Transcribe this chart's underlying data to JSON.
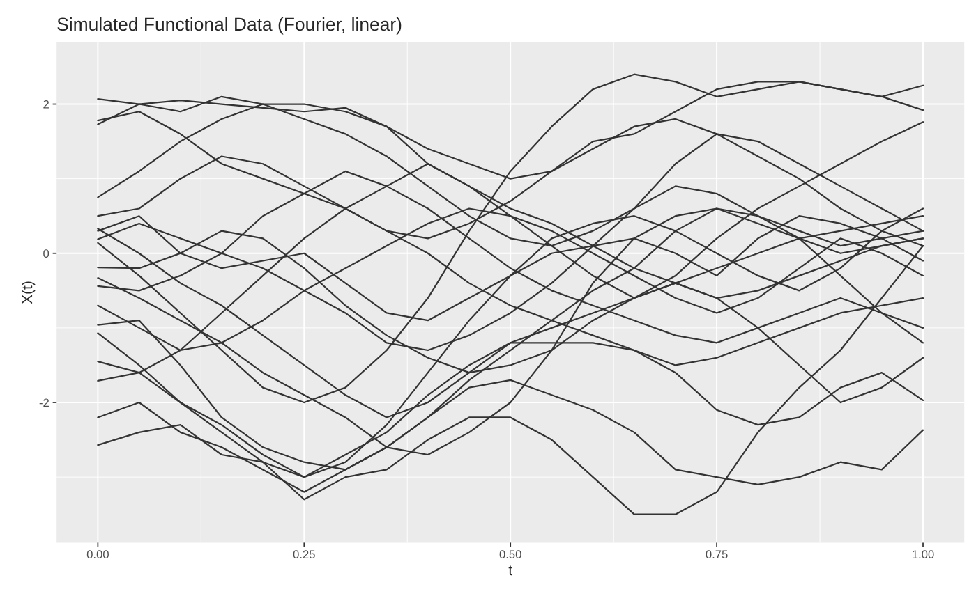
{
  "chart_data": {
    "type": "line",
    "title": "Simulated Functional Data (Fourier, linear)",
    "xlabel": "t",
    "ylabel": "X(t)",
    "x": [
      0,
      0.05,
      0.1,
      0.15,
      0.2,
      0.25,
      0.3,
      0.35,
      0.4,
      0.45,
      0.5,
      0.55,
      0.6,
      0.65,
      0.7,
      0.75,
      0.8,
      0.85,
      0.9,
      0.95,
      1.0
    ],
    "xlim": [
      -0.05,
      1.05
    ],
    "ylim": [
      -3.88,
      2.83
    ],
    "xticks": [
      {
        "value": 0,
        "label": "0.00"
      },
      {
        "value": 0.25,
        "label": "0.25"
      },
      {
        "value": 0.5,
        "label": "0.50"
      },
      {
        "value": 0.75,
        "label": "0.75"
      },
      {
        "value": 1.0,
        "label": "1.00"
      }
    ],
    "yticks": [
      -2,
      0,
      2
    ],
    "grid": true,
    "legend": false,
    "series": [
      {
        "color": "#333333",
        "values": [
          2.07,
          2.0,
          2.05,
          2.0,
          1.95,
          1.9,
          1.95,
          1.7,
          1.2,
          0.9,
          0.6,
          0.4,
          0.1,
          -0.2,
          -0.4,
          -0.6,
          -0.5,
          -0.3,
          -0.1,
          0.1,
          0.2
        ]
      },
      {
        "color": "#333333",
        "values": [
          1.78,
          1.9,
          1.6,
          1.2,
          1.0,
          0.8,
          0.6,
          0.3,
          0.0,
          -0.4,
          -0.7,
          -0.9,
          -1.1,
          -1.3,
          -1.5,
          -1.4,
          -1.2,
          -1.0,
          -0.8,
          -0.7,
          -0.6
        ]
      },
      {
        "color": "#333333",
        "values": [
          1.73,
          2.0,
          1.9,
          2.1,
          2.0,
          1.8,
          1.6,
          1.3,
          0.9,
          0.5,
          0.2,
          0.1,
          0.3,
          0.6,
          0.9,
          0.8,
          0.5,
          0.3,
          0.1,
          0.2,
          0.3
        ]
      },
      {
        "color": "#333333",
        "values": [
          0.75,
          1.1,
          1.5,
          1.8,
          2.0,
          2.0,
          1.9,
          1.7,
          1.4,
          1.2,
          1.0,
          1.1,
          1.4,
          1.7,
          1.8,
          1.6,
          1.3,
          1.0,
          0.6,
          0.3,
          0.1
        ]
      },
      {
        "color": "#333333",
        "values": [
          0.5,
          0.6,
          1.0,
          1.3,
          1.2,
          0.9,
          0.6,
          0.3,
          0.2,
          0.4,
          0.7,
          1.1,
          1.5,
          1.6,
          1.9,
          2.2,
          2.3,
          2.3,
          2.2,
          2.1,
          1.92
        ]
      },
      {
        "color": "#333333",
        "values": [
          0.33,
          0.0,
          -0.4,
          -0.7,
          -1.1,
          -1.5,
          -1.9,
          -2.2,
          -2.0,
          -1.6,
          -1.2,
          -1.0,
          -0.8,
          -0.6,
          -0.3,
          0.2,
          0.6,
          0.9,
          1.2,
          1.5,
          1.76
        ]
      },
      {
        "color": "#333333",
        "values": [
          0.19,
          0.4,
          0.2,
          0.0,
          -0.2,
          -0.5,
          -0.8,
          -1.2,
          -1.3,
          -1.1,
          -0.8,
          -0.4,
          0.1,
          0.6,
          1.2,
          1.6,
          1.5,
          1.2,
          0.9,
          0.6,
          0.3
        ]
      },
      {
        "color": "#333333",
        "values": [
          0.14,
          -0.3,
          -0.8,
          -1.3,
          -1.8,
          -2.0,
          -1.8,
          -1.3,
          -0.6,
          0.3,
          1.1,
          1.7,
          2.2,
          2.4,
          2.3,
          2.1,
          2.2,
          2.3,
          2.2,
          2.1,
          2.25
        ]
      },
      {
        "color": "#333333",
        "values": [
          -0.19,
          -0.2,
          0.0,
          0.3,
          0.2,
          -0.2,
          -0.7,
          -1.1,
          -1.4,
          -1.6,
          -1.5,
          -1.3,
          -0.9,
          -0.6,
          -0.4,
          -0.2,
          0.0,
          0.2,
          0.3,
          0.4,
          0.5
        ]
      },
      {
        "color": "#333333",
        "values": [
          -0.33,
          -0.6,
          -0.9,
          -1.2,
          -1.6,
          -1.9,
          -2.2,
          -2.6,
          -2.7,
          -2.4,
          -2.0,
          -1.3,
          -0.4,
          0.2,
          0.5,
          0.6,
          0.4,
          0.2,
          0.0,
          0.1,
          0.2
        ]
      },
      {
        "color": "#333333",
        "values": [
          -0.44,
          -0.5,
          -0.3,
          0.0,
          0.5,
          0.8,
          1.1,
          0.9,
          0.6,
          0.2,
          -0.2,
          -0.5,
          -0.7,
          -0.9,
          -1.1,
          -1.2,
          -1.0,
          -0.8,
          -0.6,
          -0.8,
          -1.0
        ]
      },
      {
        "color": "#333333",
        "values": [
          -0.7,
          -1.0,
          -1.3,
          -1.2,
          -0.9,
          -0.5,
          -0.2,
          0.1,
          0.4,
          0.6,
          0.5,
          0.3,
          0.0,
          -0.3,
          -0.6,
          -0.8,
          -0.6,
          -0.2,
          0.2,
          0.0,
          -0.3
        ]
      },
      {
        "color": "#333333",
        "values": [
          -0.96,
          -0.9,
          -1.5,
          -2.2,
          -2.6,
          -2.8,
          -2.9,
          -2.6,
          -2.2,
          -1.7,
          -1.3,
          -0.9,
          -0.5,
          -0.2,
          0.3,
          0.6,
          0.5,
          0.2,
          -0.3,
          -0.8,
          -1.2
        ]
      },
      {
        "color": "#333333",
        "values": [
          -1.07,
          -1.5,
          -2.0,
          -2.4,
          -2.8,
          -3.0,
          -2.8,
          -2.3,
          -1.6,
          -0.9,
          -0.3,
          0.2,
          0.4,
          0.5,
          0.3,
          0.0,
          -0.3,
          -0.5,
          -0.2,
          0.3,
          0.6
        ]
      },
      {
        "color": "#333333",
        "values": [
          -1.45,
          -1.6,
          -1.3,
          -0.8,
          -0.3,
          0.2,
          0.6,
          0.9,
          1.2,
          0.9,
          0.5,
          0.1,
          -0.3,
          -0.6,
          -0.4,
          -0.6,
          -1.0,
          -1.5,
          -2.0,
          -1.8,
          -1.4
        ]
      },
      {
        "color": "#333333",
        "values": [
          -1.71,
          -1.6,
          -2.0,
          -2.3,
          -2.7,
          -3.0,
          -2.7,
          -2.4,
          -1.9,
          -1.5,
          -1.2,
          -1.2,
          -1.2,
          -1.3,
          -1.6,
          -2.1,
          -2.3,
          -2.2,
          -1.8,
          -1.6,
          -1.97
        ]
      },
      {
        "color": "#333333",
        "values": [
          -2.2,
          -2.0,
          -2.4,
          -2.6,
          -2.9,
          -3.2,
          -2.9,
          -2.6,
          -2.2,
          -1.8,
          -1.7,
          -1.9,
          -2.1,
          -2.4,
          -2.9,
          -3.0,
          -3.1,
          -3.0,
          -2.8,
          -2.9,
          -2.37
        ]
      },
      {
        "color": "#333333",
        "values": [
          -2.57,
          -2.4,
          -2.3,
          -2.7,
          -2.8,
          -3.3,
          -3.0,
          -2.9,
          -2.5,
          -2.2,
          -2.2,
          -2.5,
          -3.0,
          -3.5,
          -3.5,
          -3.2,
          -2.4,
          -1.8,
          -1.3,
          -0.6,
          0.1
        ]
      },
      {
        "color": "#333333",
        "values": [
          0.3,
          0.5,
          0.0,
          -0.2,
          -0.1,
          0.0,
          -0.4,
          -0.8,
          -0.9,
          -0.6,
          -0.3,
          0.0,
          0.1,
          0.2,
          0.0,
          -0.3,
          0.2,
          0.5,
          0.4,
          0.2,
          -0.1
        ]
      }
    ]
  }
}
